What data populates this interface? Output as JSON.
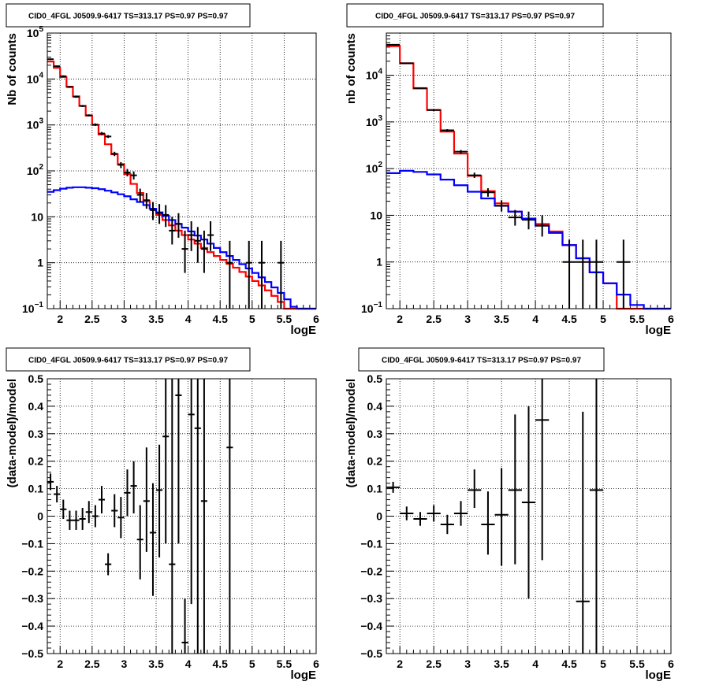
{
  "chart_data": [
    {
      "type": "step-histogram",
      "title": "CID0_4FGL J0509.9-6417 TS=313.17 PS=0.97 PS=0.97",
      "xlabel": "logE",
      "ylabel": "Nb of counts",
      "xlim": [
        1.8,
        6
      ],
      "ylim": [
        0.1,
        100000
      ],
      "ylog": true,
      "grid": true,
      "x_ticks": [
        "2",
        "2.5",
        "3",
        "3.5",
        "4",
        "4.5",
        "5",
        "5.5",
        "6"
      ],
      "y_ticks": [
        {
          "v": 0.1,
          "b": "10",
          "e": "−1"
        },
        {
          "v": 1,
          "b": "1",
          "e": ""
        },
        {
          "v": 10,
          "b": "10",
          "e": ""
        },
        {
          "v": 100,
          "b": "10",
          "e": "2"
        },
        {
          "v": 1000,
          "b": "10",
          "e": "3"
        },
        {
          "v": 10000,
          "b": "10",
          "e": "4"
        },
        {
          "v": 100000,
          "b": "10",
          "e": "5"
        }
      ],
      "bin_edges": [
        1.8,
        1.9,
        2.0,
        2.1,
        2.2,
        2.3,
        2.4,
        2.5,
        2.6,
        2.7,
        2.8,
        2.9,
        3.0,
        3.1,
        3.2,
        3.3,
        3.4,
        3.5,
        3.6,
        3.7,
        3.8,
        3.9,
        4.0,
        4.1,
        4.2,
        4.3,
        4.4,
        4.5,
        4.6,
        4.7,
        4.8,
        4.9,
        5.0,
        5.1,
        5.2,
        5.3,
        5.4,
        5.5,
        5.6,
        5.7,
        5.8,
        5.9,
        6.0
      ],
      "series": [
        {
          "name": "",
          "color": "#ff0000",
          "values": [
            24000,
            17500,
            11000,
            6800,
            4200,
            2600,
            1600,
            1000,
            620,
            380,
            230,
            140,
            85,
            52,
            33,
            22,
            15,
            11,
            8.5,
            6.5,
            5,
            4,
            3.2,
            2.6,
            2.1,
            1.7,
            1.4,
            1.15,
            0.95,
            0.78,
            0.63,
            0.5,
            0.4,
            0.32,
            0.25,
            0.19,
            0.14,
            0.1,
            0.1,
            0.1,
            0.1,
            0.1
          ]
        },
        {
          "name": "",
          "color": "#0000ff",
          "values": [
            35,
            38,
            41,
            43,
            44,
            44,
            43,
            42,
            40,
            37,
            34,
            31,
            28,
            24,
            21,
            18,
            15,
            12.5,
            10.5,
            8.5,
            7,
            5.8,
            4.8,
            3.9,
            3.2,
            2.6,
            2.1,
            1.7,
            1.4,
            1.15,
            0.93,
            0.75,
            0.6,
            0.48,
            0.38,
            0.29,
            0.22,
            0.16,
            0.11,
            0.1,
            0.1,
            0.1
          ]
        }
      ],
      "points": [
        {
          "x": 1.85,
          "y": 27000,
          "lo": 26000,
          "hi": 28000
        },
        {
          "x": 1.95,
          "y": 19000,
          "lo": 18200,
          "hi": 19800
        },
        {
          "x": 2.05,
          "y": 11500,
          "lo": 11000,
          "hi": 12000
        },
        {
          "x": 2.15,
          "y": 6700,
          "lo": 6400,
          "hi": 7000
        },
        {
          "x": 2.25,
          "y": 4100,
          "lo": 3900,
          "hi": 4300
        },
        {
          "x": 2.35,
          "y": 2580,
          "lo": 2450,
          "hi": 2710
        },
        {
          "x": 2.45,
          "y": 1620,
          "lo": 1540,
          "hi": 1700
        },
        {
          "x": 2.55,
          "y": 1015,
          "lo": 950,
          "hi": 1080
        },
        {
          "x": 2.65,
          "y": 650,
          "lo": 600,
          "hi": 700
        },
        {
          "x": 2.75,
          "y": 560,
          "lo": 520,
          "hi": 600
        },
        {
          "x": 2.85,
          "y": 235,
          "lo": 210,
          "hi": 260
        },
        {
          "x": 2.95,
          "y": 135,
          "lo": 115,
          "hi": 155
        },
        {
          "x": 3.05,
          "y": 92,
          "lo": 76,
          "hi": 110
        },
        {
          "x": 3.15,
          "y": 80,
          "lo": 65,
          "hi": 97
        },
        {
          "x": 3.25,
          "y": 30,
          "lo": 21,
          "hi": 41
        },
        {
          "x": 3.35,
          "y": 23,
          "lo": 15,
          "hi": 33
        },
        {
          "x": 3.45,
          "y": 14,
          "lo": 8.5,
          "hi": 21
        },
        {
          "x": 3.55,
          "y": 12,
          "lo": 7,
          "hi": 19
        },
        {
          "x": 3.65,
          "y": 11,
          "lo": 6,
          "hi": 18
        },
        {
          "x": 3.75,
          "y": 5,
          "lo": 2.5,
          "hi": 10
        },
        {
          "x": 3.85,
          "y": 7,
          "lo": 3.5,
          "hi": 12
        },
        {
          "x": 3.95,
          "y": 2,
          "lo": 0.6,
          "hi": 5
        },
        {
          "x": 4.05,
          "y": 4,
          "lo": 1.8,
          "hi": 8
        },
        {
          "x": 4.15,
          "y": 3,
          "lo": 1,
          "hi": 6
        },
        {
          "x": 4.25,
          "y": 2,
          "lo": 0.6,
          "hi": 5
        },
        {
          "x": 4.35,
          "y": 4,
          "lo": 1.8,
          "hi": 8
        },
        {
          "x": 4.65,
          "y": 1,
          "lo": 0.1,
          "hi": 3
        },
        {
          "x": 4.95,
          "y": 1,
          "lo": 0.1,
          "hi": 3
        },
        {
          "x": 5.15,
          "y": 1,
          "lo": 0.1,
          "hi": 3
        },
        {
          "x": 5.45,
          "y": 1,
          "lo": 0.1,
          "hi": 3
        }
      ],
      "point_halfwidth": 0.05
    },
    {
      "type": "step-histogram",
      "title": "CID0_4FGL J0509.9-6417 TS=313.17 PS=0.97 PS=0.97",
      "xlabel": "logE",
      "ylabel": "nb of counts",
      "xlim": [
        1.8,
        6
      ],
      "ylim": [
        0.1,
        80000
      ],
      "ylog": true,
      "grid": true,
      "x_ticks": [
        "2",
        "2.5",
        "3",
        "3.5",
        "4",
        "4.5",
        "5",
        "5.5",
        "6"
      ],
      "y_ticks": [
        {
          "v": 0.1,
          "b": "10",
          "e": "−1"
        },
        {
          "v": 1,
          "b": "1",
          "e": ""
        },
        {
          "v": 10,
          "b": "10",
          "e": ""
        },
        {
          "v": 100,
          "b": "10",
          "e": "2"
        },
        {
          "v": 1000,
          "b": "10",
          "e": "3"
        },
        {
          "v": 10000,
          "b": "10",
          "e": "4"
        }
      ],
      "bin_edges": [
        1.8,
        2.0,
        2.2,
        2.4,
        2.6,
        2.8,
        3.0,
        3.2,
        3.4,
        3.6,
        3.8,
        4.0,
        4.2,
        4.4,
        4.6,
        4.8,
        5.0,
        5.2,
        5.4,
        5.6,
        5.8,
        6.0
      ],
      "series": [
        {
          "name": "",
          "color": "#ff0000",
          "values": [
            42000,
            18000,
            5200,
            1800,
            620,
            210,
            70,
            33,
            18,
            12,
            8.5,
            6.5,
            4.5,
            2.3,
            1.2,
            0.6,
            0.35,
            0.1,
            0.1,
            0.1,
            0.1
          ]
        },
        {
          "name": "",
          "color": "#0000ff",
          "values": [
            80,
            90,
            85,
            75,
            58,
            44,
            32,
            23,
            16,
            12,
            8.5,
            6.0,
            4.2,
            2.3,
            1.2,
            0.6,
            0.35,
            0.2,
            0.12,
            0.1,
            0.1
          ]
        }
      ],
      "points": [
        {
          "x": 1.9,
          "y": 45000,
          "lo": 44000,
          "hi": 46000
        },
        {
          "x": 2.1,
          "y": 18000,
          "lo": 17600,
          "hi": 18400
        },
        {
          "x": 2.3,
          "y": 5300,
          "lo": 5150,
          "hi": 5450
        },
        {
          "x": 2.5,
          "y": 1800,
          "lo": 1720,
          "hi": 1880
        },
        {
          "x": 2.7,
          "y": 660,
          "lo": 620,
          "hi": 700
        },
        {
          "x": 2.9,
          "y": 230,
          "lo": 210,
          "hi": 250
        },
        {
          "x": 3.1,
          "y": 72,
          "lo": 63,
          "hi": 82
        },
        {
          "x": 3.3,
          "y": 31,
          "lo": 25,
          "hi": 38
        },
        {
          "x": 3.5,
          "y": 16,
          "lo": 12,
          "hi": 21
        },
        {
          "x": 3.7,
          "y": 9,
          "lo": 6,
          "hi": 13
        },
        {
          "x": 3.9,
          "y": 8,
          "lo": 5,
          "hi": 12
        },
        {
          "x": 4.1,
          "y": 6,
          "lo": 3.5,
          "hi": 10
        },
        {
          "x": 4.5,
          "y": 1,
          "lo": 0.1,
          "hi": 3
        },
        {
          "x": 4.7,
          "y": 1,
          "lo": 0.1,
          "hi": 3
        },
        {
          "x": 4.9,
          "y": 1,
          "lo": 0.1,
          "hi": 3
        },
        {
          "x": 5.3,
          "y": 1,
          "lo": 0.1,
          "hi": 3
        }
      ],
      "point_halfwidth": 0.1
    },
    {
      "type": "scatter",
      "title": "CID0_4FGL J0509.9-6417 TS=313.17 PS=0.97 PS=0.97",
      "xlabel": "logE",
      "ylabel": "(data-model)/model",
      "xlim": [
        1.8,
        6
      ],
      "ylim": [
        -0.5,
        0.5
      ],
      "ylog": false,
      "grid": true,
      "x_ticks": [
        "2",
        "2.5",
        "3",
        "3.5",
        "4",
        "4.5",
        "5",
        "5.5",
        "6"
      ],
      "y_ticks": [
        {
          "v": -0.5,
          "b": "−0.5",
          "e": ""
        },
        {
          "v": -0.4,
          "b": "−0.4",
          "e": ""
        },
        {
          "v": -0.3,
          "b": "−0.3",
          "e": ""
        },
        {
          "v": -0.2,
          "b": "−0.2",
          "e": ""
        },
        {
          "v": -0.1,
          "b": "−0.1",
          "e": ""
        },
        {
          "v": 0,
          "b": "0",
          "e": ""
        },
        {
          "v": 0.1,
          "b": "0.1",
          "e": ""
        },
        {
          "v": 0.2,
          "b": "0.2",
          "e": ""
        },
        {
          "v": 0.3,
          "b": "0.3",
          "e": ""
        },
        {
          "v": 0.4,
          "b": "0.4",
          "e": ""
        },
        {
          "v": 0.5,
          "b": "0.5",
          "e": ""
        }
      ],
      "points": [
        {
          "x": 1.85,
          "y": 0.125,
          "lo": 0.095,
          "hi": 0.155
        },
        {
          "x": 1.95,
          "y": 0.08,
          "lo": 0.05,
          "hi": 0.11
        },
        {
          "x": 2.05,
          "y": 0.025,
          "lo": -0.01,
          "hi": 0.06
        },
        {
          "x": 2.15,
          "y": -0.015,
          "lo": -0.05,
          "hi": 0.02
        },
        {
          "x": 2.25,
          "y": -0.015,
          "lo": -0.05,
          "hi": 0.02
        },
        {
          "x": 2.35,
          "y": -0.01,
          "lo": -0.05,
          "hi": 0.03
        },
        {
          "x": 2.45,
          "y": 0.015,
          "lo": -0.025,
          "hi": 0.055
        },
        {
          "x": 2.55,
          "y": 0.0,
          "lo": -0.04,
          "hi": 0.04
        },
        {
          "x": 2.65,
          "y": 0.06,
          "lo": 0.01,
          "hi": 0.11
        },
        {
          "x": 2.75,
          "y": -0.175,
          "lo": -0.215,
          "hi": -0.135
        },
        {
          "x": 2.85,
          "y": 0.02,
          "lo": -0.04,
          "hi": 0.08
        },
        {
          "x": 2.95,
          "y": -0.005,
          "lo": -0.08,
          "hi": 0.07
        },
        {
          "x": 3.05,
          "y": 0.085,
          "lo": 0.0,
          "hi": 0.17
        },
        {
          "x": 3.15,
          "y": 0.11,
          "lo": 0.01,
          "hi": 0.2
        },
        {
          "x": 3.25,
          "y": -0.085,
          "lo": -0.23,
          "hi": 0.04
        },
        {
          "x": 3.35,
          "y": 0.055,
          "lo": -0.13,
          "hi": 0.25
        },
        {
          "x": 3.45,
          "y": -0.06,
          "lo": -0.29,
          "hi": 0.12
        },
        {
          "x": 3.55,
          "y": 0.095,
          "lo": -0.15,
          "hi": 0.26
        },
        {
          "x": 3.65,
          "y": 0.29,
          "lo": -0.1,
          "hi": 0.5
        },
        {
          "x": 3.75,
          "y": -0.175,
          "lo": -0.5,
          "hi": 0.5
        },
        {
          "x": 3.85,
          "y": 0.44,
          "lo": -0.1,
          "hi": 0.5
        },
        {
          "x": 3.95,
          "y": -0.46,
          "lo": -0.5,
          "hi": -0.3
        },
        {
          "x": 4.05,
          "y": 0.37,
          "lo": -0.32,
          "hi": 0.5
        },
        {
          "x": 4.15,
          "y": 0.32,
          "lo": -0.5,
          "hi": 0.5
        },
        {
          "x": 4.25,
          "y": 0.055,
          "lo": -0.5,
          "hi": 0.5
        },
        {
          "x": 4.65,
          "y": 0.25,
          "lo": -0.5,
          "hi": 0.5
        }
      ],
      "point_halfwidth": 0.05
    },
    {
      "type": "scatter",
      "title": "CID0_4FGL J0509.9-6417 TS=313.17 PS=0.97 PS=0.97",
      "xlabel": "logE",
      "ylabel": "(data-model)/model",
      "xlim": [
        1.8,
        6
      ],
      "ylim": [
        -0.5,
        0.5
      ],
      "ylog": false,
      "grid": true,
      "x_ticks": [
        "2",
        "2.5",
        "3",
        "3.5",
        "4",
        "4.5",
        "5",
        "5.5",
        "6"
      ],
      "y_ticks": [
        {
          "v": -0.5,
          "b": "−0.5",
          "e": ""
        },
        {
          "v": -0.4,
          "b": "−0.4",
          "e": ""
        },
        {
          "v": -0.3,
          "b": "−0.3",
          "e": ""
        },
        {
          "v": -0.2,
          "b": "−0.2",
          "e": ""
        },
        {
          "v": -0.1,
          "b": "−0.1",
          "e": ""
        },
        {
          "v": 0,
          "b": "0",
          "e": ""
        },
        {
          "v": 0.1,
          "b": "0.1",
          "e": ""
        },
        {
          "v": 0.2,
          "b": "0.2",
          "e": ""
        },
        {
          "v": 0.3,
          "b": "0.3",
          "e": ""
        },
        {
          "v": 0.4,
          "b": "0.4",
          "e": ""
        },
        {
          "v": 0.5,
          "b": "0.5",
          "e": ""
        }
      ],
      "points": [
        {
          "x": 1.9,
          "y": 0.105,
          "lo": 0.085,
          "hi": 0.125
        },
        {
          "x": 2.1,
          "y": 0.01,
          "lo": -0.015,
          "hi": 0.035
        },
        {
          "x": 2.3,
          "y": -0.01,
          "lo": -0.035,
          "hi": 0.015
        },
        {
          "x": 2.5,
          "y": 0.01,
          "lo": -0.02,
          "hi": 0.04
        },
        {
          "x": 2.7,
          "y": -0.03,
          "lo": -0.065,
          "hi": 0.005
        },
        {
          "x": 2.9,
          "y": 0.01,
          "lo": -0.035,
          "hi": 0.055
        },
        {
          "x": 3.1,
          "y": 0.095,
          "lo": 0.03,
          "hi": 0.17
        },
        {
          "x": 3.3,
          "y": -0.03,
          "lo": -0.14,
          "hi": 0.09
        },
        {
          "x": 3.5,
          "y": 0.005,
          "lo": -0.18,
          "hi": 0.175
        },
        {
          "x": 3.7,
          "y": 0.095,
          "lo": -0.175,
          "hi": 0.37
        },
        {
          "x": 3.9,
          "y": 0.05,
          "lo": -0.3,
          "hi": 0.4
        },
        {
          "x": 4.1,
          "y": 0.35,
          "lo": -0.16,
          "hi": 0.5
        },
        {
          "x": 4.7,
          "y": -0.31,
          "lo": -0.5,
          "hi": 0.38
        },
        {
          "x": 4.9,
          "y": 0.095,
          "lo": -0.5,
          "hi": 0.5
        }
      ],
      "point_halfwidth": 0.1
    }
  ]
}
